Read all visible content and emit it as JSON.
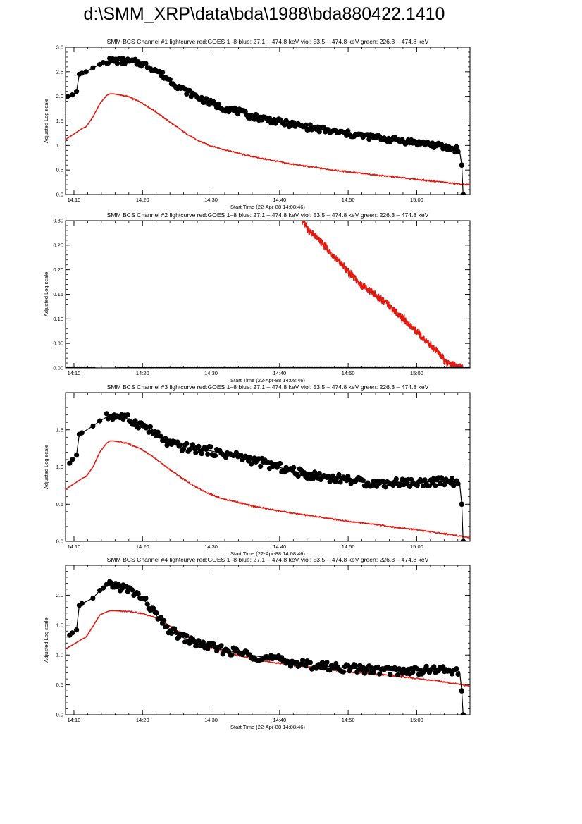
{
  "page": {
    "title": "d:\\SMM_XRP\\data\\bda\\1988\\bda880422.1410"
  },
  "colors": {
    "goes": "#e01a10",
    "bcs": "#000000",
    "axis": "#000000"
  },
  "chart_data": [
    {
      "type": "line",
      "title": "SMM BCS Channel #1 lightcurve  red:GOES 1–8  blue: 27.1 – 474.8 keV  viol: 53.5 – 474.8 keV  green: 226.3 – 474.8 keV",
      "xlabel": "Start Time (22-Apr-88 14:08:46)",
      "ylabel": "Adjusted Log scale",
      "xlim_minutes": [
        0,
        59
      ],
      "ylim": [
        0,
        3.0
      ],
      "x_tick_labels": [
        "14:10",
        "14:20",
        "14:30",
        "14:40",
        "14:50",
        "15:00"
      ],
      "x_tick_minutes": [
        1.23,
        11.23,
        21.23,
        31.23,
        41.23,
        51.23
      ],
      "y_tick_labels": [
        "0.0",
        "0.5",
        "1.0",
        "1.5",
        "2.0",
        "2.5",
        "3.0"
      ],
      "y_tick_values": [
        0,
        0.5,
        1.0,
        1.5,
        2.0,
        2.5,
        3.0
      ],
      "series": [
        {
          "name": "GOES 1-8",
          "color": "red",
          "x": [
            0,
            2.5,
            3,
            4,
            5,
            6,
            6.5,
            7,
            9,
            11,
            13,
            15,
            17,
            19,
            21,
            23,
            25,
            27,
            30,
            33,
            36,
            39,
            42,
            45,
            48,
            51,
            54,
            57,
            59
          ],
          "y": [
            1.12,
            1.35,
            1.38,
            1.58,
            1.85,
            2.02,
            2.05,
            2.05,
            2.0,
            1.88,
            1.7,
            1.5,
            1.3,
            1.12,
            1.0,
            0.92,
            0.85,
            0.78,
            0.7,
            0.62,
            0.56,
            0.5,
            0.45,
            0.4,
            0.36,
            0.31,
            0.27,
            0.22,
            0.2
          ]
        },
        {
          "name": "BCS Channel 1",
          "color": "black",
          "x": [
            0.3,
            1.0,
            1.6,
            2.0,
            2.4,
            3.0,
            4.0,
            5.0,
            5.5,
            6.0,
            7.0,
            8.0,
            9.0,
            10.0,
            11.0,
            12.0,
            13.0,
            14.0,
            15.0,
            16.0,
            17.0,
            19.0,
            21.0,
            23.0,
            25.0,
            27.0,
            29.0,
            31.0,
            33.0,
            35.0,
            37.0,
            39.0,
            41.0,
            43.0,
            45.0,
            47.0,
            49.0,
            51.0,
            53.0,
            55.0,
            57.0,
            57.5,
            57.8,
            58.0
          ],
          "y": [
            2.0,
            2.03,
            2.1,
            2.45,
            2.47,
            2.5,
            2.58,
            2.65,
            2.69,
            2.72,
            2.73,
            2.72,
            2.71,
            2.7,
            2.67,
            2.62,
            2.55,
            2.45,
            2.35,
            2.25,
            2.15,
            2.0,
            1.87,
            1.77,
            1.7,
            1.6,
            1.55,
            1.48,
            1.43,
            1.38,
            1.33,
            1.28,
            1.24,
            1.2,
            1.17,
            1.13,
            1.1,
            1.06,
            1.03,
            0.97,
            0.92,
            0.88,
            0.6,
            0.0
          ]
        }
      ]
    },
    {
      "type": "line",
      "title": "SMM BCS Channel #2 lightcurve  red:GOES 1–8  blue: 27.1 – 474.8 keV  viol: 53.5 – 474.8 keV  green: 226.3 – 474.8 keV",
      "xlabel": "Start Time (22-Apr-88 14:08:46)",
      "ylabel": "Adjusted Log scale",
      "xlim_minutes": [
        0,
        59
      ],
      "ylim": [
        0,
        0.3
      ],
      "x_tick_labels": [
        "14:10",
        "14:20",
        "14:30",
        "14:40",
        "14:50",
        "15:00"
      ],
      "x_tick_minutes": [
        1.23,
        11.23,
        21.23,
        31.23,
        41.23,
        51.23
      ],
      "y_tick_labels": [
        "0.00",
        "0.05",
        "0.10",
        "0.15",
        "0.20",
        "0.25",
        "0.30"
      ],
      "y_tick_values": [
        0,
        0.05,
        0.1,
        0.15,
        0.2,
        0.25,
        0.3
      ],
      "series": [
        {
          "name": "GOES 1-8",
          "color": "red",
          "x": [
            34.5,
            35.5,
            37,
            39,
            41,
            43,
            45,
            47,
            48.5,
            50,
            51.5,
            53,
            54.5,
            55.5,
            57,
            58
          ],
          "y": [
            0.3,
            0.28,
            0.26,
            0.23,
            0.2,
            0.17,
            0.15,
            0.13,
            0.11,
            0.09,
            0.07,
            0.05,
            0.03,
            0.01,
            0.005,
            0.0
          ]
        },
        {
          "name": "BCS Channel 2",
          "color": "black",
          "x": [
            0.3,
            2.5,
            4.0,
            59.0
          ],
          "y": [
            0.0,
            0.0,
            0.0,
            0.0
          ]
        }
      ]
    },
    {
      "type": "line",
      "title": "SMM BCS Channel #3 lightcurve  red:GOES 1–8  blue: 27.1 – 474.8 keV  viol: 53.5 – 474.8 keV  green: 226.3 – 474.8 keV",
      "xlabel": "Start Time (22-Apr-88 14:08:46)",
      "ylabel": "Adjusted Log scale",
      "xlim_minutes": [
        0,
        59
      ],
      "ylim": [
        0,
        2.0
      ],
      "x_tick_labels": [
        "14:10",
        "14:20",
        "14:30",
        "14:40",
        "14:50",
        "15:00"
      ],
      "x_tick_minutes": [
        1.23,
        11.23,
        21.23,
        31.23,
        41.23,
        51.23
      ],
      "y_tick_labels": [
        "0.0",
        "0.5",
        "1.0",
        "1.5"
      ],
      "y_tick_values": [
        0,
        0.5,
        1.0,
        1.5
      ],
      "series": [
        {
          "name": "GOES 1-8",
          "color": "red",
          "x": [
            0,
            2.5,
            3,
            4,
            5,
            6,
            6.5,
            7,
            9,
            11,
            13,
            15,
            17,
            19,
            21,
            23,
            25,
            27,
            30,
            33,
            36,
            39,
            42,
            45,
            48,
            51,
            54,
            57,
            59
          ],
          "y": [
            0.7,
            0.85,
            0.87,
            1.0,
            1.2,
            1.32,
            1.35,
            1.35,
            1.32,
            1.24,
            1.12,
            0.98,
            0.85,
            0.73,
            0.64,
            0.57,
            0.53,
            0.48,
            0.43,
            0.38,
            0.34,
            0.3,
            0.26,
            0.23,
            0.19,
            0.16,
            0.12,
            0.08,
            0.05
          ]
        },
        {
          "name": "BCS Channel 3",
          "color": "black",
          "x": [
            0.6,
            1.0,
            1.6,
            2.0,
            2.4,
            4.0,
            5.0,
            6.0,
            7.0,
            8.0,
            9.0,
            10.0,
            11.0,
            12.0,
            13.0,
            14.0,
            15.0,
            17.0,
            19.0,
            21.0,
            23.0,
            25.0,
            27.0,
            29.0,
            31.0,
            33.0,
            35.0,
            37.0,
            39.0,
            41.0,
            43.0,
            45.0,
            47.0,
            49.0,
            51.0,
            53.0,
            55.0,
            57.0,
            57.5,
            57.8,
            58.0
          ],
          "y": [
            1.05,
            1.1,
            1.16,
            1.44,
            1.46,
            1.55,
            1.62,
            1.67,
            1.69,
            1.68,
            1.65,
            1.6,
            1.57,
            1.52,
            1.45,
            1.38,
            1.32,
            1.27,
            1.24,
            1.22,
            1.18,
            1.15,
            1.1,
            1.05,
            1.0,
            0.95,
            0.9,
            0.88,
            0.85,
            0.84,
            0.8,
            0.78,
            0.78,
            0.8,
            0.78,
            0.8,
            0.8,
            0.8,
            0.78,
            0.5,
            0.0
          ]
        }
      ]
    },
    {
      "type": "line",
      "title": "SMM BCS Channel #4 lightcurve  red:GOES 1–8  blue: 27.1 – 474.8 keV  viol: 53.5 – 474.8 keV  green: 226.3 – 474.8 keV",
      "xlabel": "Start Time (22-Apr-88 14:08:46)",
      "ylabel": "Adjusted Log scale",
      "xlim_minutes": [
        0,
        59
      ],
      "ylim": [
        0,
        2.5
      ],
      "x_tick_labels": [
        "14:10",
        "14:20",
        "14:30",
        "14:40",
        "14:50",
        "15:00"
      ],
      "x_tick_minutes": [
        1.23,
        11.23,
        21.23,
        31.23,
        41.23,
        51.23
      ],
      "y_tick_labels": [
        "0.0",
        "0.5",
        "1.0",
        "1.5",
        "2.0"
      ],
      "y_tick_values": [
        0,
        0.5,
        1.0,
        1.5,
        2.0
      ],
      "series": [
        {
          "name": "GOES 1-8",
          "color": "red",
          "x": [
            0,
            2.5,
            3,
            4,
            5,
            6,
            6.5,
            7,
            9,
            11,
            13,
            15,
            17,
            19,
            21,
            23,
            25,
            27,
            30,
            33,
            36,
            39,
            42,
            45,
            48,
            51,
            54,
            57,
            59
          ],
          "y": [
            1.1,
            1.27,
            1.3,
            1.48,
            1.67,
            1.72,
            1.74,
            1.74,
            1.73,
            1.7,
            1.63,
            1.5,
            1.35,
            1.22,
            1.13,
            1.05,
            1.0,
            0.94,
            0.88,
            0.83,
            0.79,
            0.75,
            0.71,
            0.68,
            0.65,
            0.61,
            0.57,
            0.52,
            0.48
          ]
        },
        {
          "name": "BCS Channel 4",
          "color": "black",
          "x": [
            0.6,
            1.0,
            1.6,
            2.0,
            2.4,
            4.0,
            5.0,
            5.5,
            6.0,
            7.0,
            8.0,
            9.0,
            10.0,
            11.0,
            12.0,
            13.0,
            14.0,
            15.0,
            17.0,
            19.0,
            21.0,
            23.0,
            25.0,
            27.0,
            29.0,
            31.0,
            33.0,
            35.0,
            37.0,
            39.0,
            41.0,
            43.0,
            45.0,
            47.0,
            49.0,
            51.0,
            53.0,
            55.0,
            57.0,
            57.5,
            57.8,
            58.0
          ],
          "y": [
            1.33,
            1.37,
            1.42,
            1.83,
            1.86,
            1.95,
            2.08,
            2.12,
            2.15,
            2.17,
            2.14,
            2.1,
            2.04,
            1.97,
            1.85,
            1.7,
            1.55,
            1.43,
            1.3,
            1.2,
            1.14,
            1.08,
            1.05,
            1.0,
            0.96,
            0.92,
            0.88,
            0.84,
            0.82,
            0.8,
            0.78,
            0.77,
            0.75,
            0.74,
            0.73,
            0.74,
            0.75,
            0.75,
            0.74,
            0.72,
            0.4,
            0.0
          ]
        }
      ]
    }
  ]
}
